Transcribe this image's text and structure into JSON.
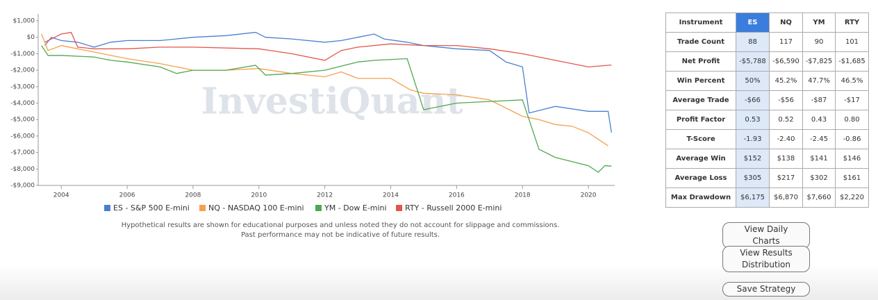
{
  "chart_data": {
    "type": "line",
    "watermark": "InvestiQuant",
    "series": [
      {
        "name": "ES - S&P 500 E-mini",
        "color": "#4a7fd0",
        "x": [
          2003.5,
          2003.7,
          2004,
          2004.5,
          2005,
          2005.5,
          2006,
          2007,
          2008,
          2009,
          2009.9,
          2010.2,
          2011,
          2012,
          2012.5,
          2013,
          2013.5,
          2013.8,
          2014.5,
          2015,
          2016,
          2017,
          2017.5,
          2018,
          2018.2,
          2019,
          2020,
          2020.6,
          2020.7
        ],
        "values": [
          -500,
          0,
          -200,
          -300,
          -600,
          -300,
          -200,
          -200,
          0,
          100,
          300,
          0,
          -100,
          -300,
          -200,
          0,
          200,
          -100,
          -300,
          -500,
          -700,
          -800,
          -1500,
          -1800,
          -4600,
          -4200,
          -4500,
          -4500,
          -5788
        ]
      },
      {
        "name": "NQ - NASDAQ 100 E-mini",
        "color": "#f5a04a",
        "x": [
          2003.4,
          2003.6,
          2004,
          2004.5,
          2005,
          2006,
          2007,
          2008,
          2009,
          2010,
          2011,
          2012,
          2012.5,
          2013,
          2014,
          2014.6,
          2015,
          2016,
          2017,
          2018,
          2018.5,
          2019,
          2019.5,
          2020,
          2020.6
        ],
        "values": [
          200,
          -800,
          -500,
          -700,
          -900,
          -1300,
          -1600,
          -2000,
          -2000,
          -1900,
          -2200,
          -2400,
          -2100,
          -2500,
          -2500,
          -3200,
          -3400,
          -3500,
          -3800,
          -4800,
          -5000,
          -5300,
          -5400,
          -5800,
          -6590
        ]
      },
      {
        "name": "YM - Dow E-mini",
        "color": "#4fa84f",
        "x": [
          2003.4,
          2003.6,
          2004,
          2005,
          2005.5,
          2006,
          2007,
          2007.5,
          2008,
          2009,
          2009.9,
          2010.2,
          2011,
          2012,
          2013,
          2013.5,
          2014.5,
          2015,
          2016,
          2017,
          2018,
          2018.5,
          2019,
          2020,
          2020.3,
          2020.5,
          2020.7
        ],
        "values": [
          -500,
          -1100,
          -1100,
          -1200,
          -1400,
          -1500,
          -1800,
          -2200,
          -2000,
          -2000,
          -1700,
          -2300,
          -2200,
          -2000,
          -1500,
          -1400,
          -1300,
          -4400,
          -4000,
          -3900,
          -3800,
          -6800,
          -7300,
          -7800,
          -8200,
          -7800,
          -7825
        ]
      },
      {
        "name": "RTY - Russell 2000 E-mini",
        "color": "#e0574a",
        "x": [
          2003.5,
          2004,
          2004.3,
          2004.5,
          2005,
          2006,
          2007,
          2008,
          2010,
          2011,
          2012,
          2012.5,
          2013,
          2014,
          2015,
          2016,
          2017,
          2018,
          2019,
          2019.5,
          2020,
          2020.7
        ],
        "values": [
          -300,
          200,
          300,
          -600,
          -700,
          -700,
          -600,
          -600,
          -700,
          -1000,
          -1400,
          -800,
          -600,
          -400,
          -500,
          -500,
          -700,
          -1000,
          -1400,
          -1600,
          -1800,
          -1685
        ]
      }
    ],
    "xlim": [
      2003.3,
      2020.8
    ],
    "xticks": [
      2004,
      2006,
      2008,
      2010,
      2012,
      2014,
      2016,
      2018,
      2020
    ],
    "ylim": [
      -9000,
      1000
    ],
    "yticks": [
      {
        "value": 1000,
        "label": "$1,000"
      },
      {
        "value": 0,
        "label": "$0"
      },
      {
        "value": -1000,
        "label": "-$1,000"
      },
      {
        "value": -2000,
        "label": "-$2,000"
      },
      {
        "value": -3000,
        "label": "-$3,000"
      },
      {
        "value": -4000,
        "label": "-$4,000"
      },
      {
        "value": -5000,
        "label": "-$5,000"
      },
      {
        "value": -6000,
        "label": "-$6,000"
      },
      {
        "value": -7000,
        "label": "-$7,000"
      },
      {
        "value": -8000,
        "label": "-$8,000"
      },
      {
        "value": -9000,
        "label": "-$9,000"
      }
    ]
  },
  "footnote": [
    "Hypothetical results are shown for educational purposes and unless noted they do not account for slippage and commissions.",
    "Past performance may not be indicative of future results."
  ],
  "table": {
    "header": [
      "Instrument",
      "ES",
      "NQ",
      "YM",
      "RTY"
    ],
    "rows": [
      [
        "Trade Count",
        "88",
        "117",
        "90",
        "101"
      ],
      [
        "Net Profit",
        "-$5,788",
        "-$6,590",
        "-$7,825",
        "-$1,685"
      ],
      [
        "Win Percent",
        "50%",
        "45.2%",
        "47.7%",
        "46.5%"
      ],
      [
        "Average Trade",
        "-$66",
        "-$56",
        "-$87",
        "-$17"
      ],
      [
        "Profit Factor",
        "0.53",
        "0.52",
        "0.43",
        "0.80"
      ],
      [
        "T-Score",
        "-1.93",
        "-2.40",
        "-2.45",
        "-0.86"
      ],
      [
        "Average Win",
        "$152",
        "$138",
        "$141",
        "$146"
      ],
      [
        "Average Loss",
        "$305",
        "$217",
        "$302",
        "$161"
      ],
      [
        "Max Drawdown",
        "$6,175",
        "$6,870",
        "$7,660",
        "$2,220"
      ]
    ]
  },
  "buttons": [
    "View Daily Charts",
    "View Results Distribution",
    "Save Strategy"
  ]
}
